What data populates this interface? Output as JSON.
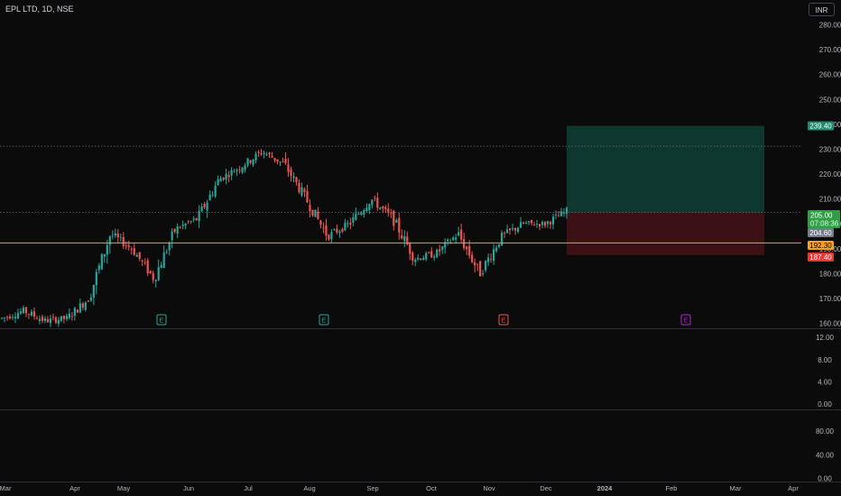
{
  "header": {
    "symbol": "EPL LTD, 1D, NSE",
    "currency": "INR"
  },
  "price_axis": {
    "ticks": [
      "280.00",
      "270.00",
      "260.00",
      "250.00",
      "240.00",
      "230.00",
      "220.00",
      "210.00",
      "200.00",
      "190.00",
      "180.00",
      "170.00",
      "160.00"
    ],
    "range": [
      158,
      290
    ]
  },
  "tags": {
    "target": "239.40",
    "last_price": "205.00",
    "countdown": "07:08:36",
    "entry": "204.60",
    "support": "192.30",
    "stop": "187.40"
  },
  "lines": {
    "resistance": 231.2,
    "entry": 204.6,
    "support": 192.3
  },
  "position": {
    "target": 239.4,
    "entry": 204.6,
    "stop": 187.4
  },
  "indicator1": {
    "ticks": [
      "12.00",
      "8.00",
      "4.00",
      "0.00"
    ],
    "range": [
      -1,
      13.5
    ]
  },
  "indicator2": {
    "ticks": [
      "80.00",
      "40.00",
      "0.00"
    ],
    "range": [
      -5,
      115
    ]
  },
  "time_axis": [
    "Mar",
    "Apr",
    "May",
    "Jun",
    "Jul",
    "Aug",
    "Sep",
    "Oct",
    "Nov",
    "Dec",
    "2024",
    "Feb",
    "Mar",
    "Apr"
  ],
  "events": [
    "E",
    "E",
    "E",
    "E"
  ],
  "colors": {
    "up": "#26a69a",
    "down": "#ef5350",
    "support": "#f7a21b",
    "target_bg": "#0f3a33",
    "stop_bg": "#3e1216"
  },
  "chart_data": {
    "type": "candlestick",
    "title": "EPL LTD, 1D, NSE",
    "ylim": [
      158,
      290
    ],
    "x": [
      "Mar",
      "Apr",
      "May",
      "Jun",
      "Jul",
      "Aug",
      "Sep",
      "Oct",
      "Nov",
      "Dec"
    ],
    "anchors": [
      {
        "x": "Mar",
        "y": 162
      },
      {
        "x": "Mar",
        "y": 165
      },
      {
        "x": "Apr",
        "y": 161
      },
      {
        "x": "Apr",
        "y": 162
      },
      {
        "x": "May",
        "y": 170
      },
      {
        "x": "May",
        "y": 196
      },
      {
        "x": "May",
        "y": 190
      },
      {
        "x": "Jun",
        "y": 178
      },
      {
        "x": "Jun",
        "y": 198
      },
      {
        "x": "Jun",
        "y": 202
      },
      {
        "x": "Jul",
        "y": 218
      },
      {
        "x": "Jul",
        "y": 223
      },
      {
        "x": "Jul",
        "y": 229
      },
      {
        "x": "Aug",
        "y": 224
      },
      {
        "x": "Aug",
        "y": 210
      },
      {
        "x": "Aug",
        "y": 195
      },
      {
        "x": "Sep",
        "y": 200
      },
      {
        "x": "Sep",
        "y": 210
      },
      {
        "x": "Sep",
        "y": 202
      },
      {
        "x": "Oct",
        "y": 186
      },
      {
        "x": "Oct",
        "y": 188
      },
      {
        "x": "Oct",
        "y": 196
      },
      {
        "x": "Nov",
        "y": 180
      },
      {
        "x": "Nov",
        "y": 195
      },
      {
        "x": "Nov",
        "y": 200
      },
      {
        "x": "Dec",
        "y": 200
      },
      {
        "x": "Dec",
        "y": 205
      }
    ]
  }
}
